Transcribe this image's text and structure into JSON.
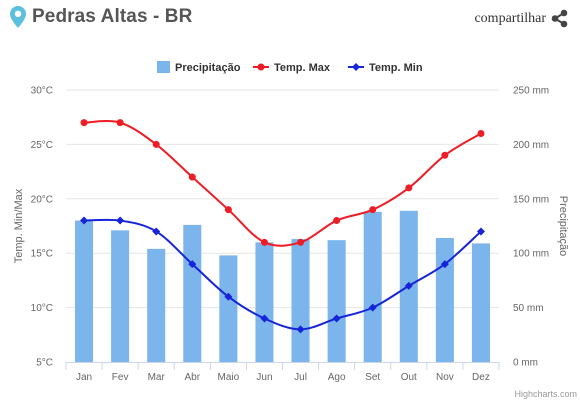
{
  "header": {
    "title": "Pedras Altas - BR",
    "share_label": "compartilhar",
    "pin_icon": "location-pin-icon",
    "share_icon": "share-icon",
    "accent": "#5bc0de"
  },
  "credits": "Highcharts.com",
  "chart_data": {
    "type": "bar",
    "categories": [
      "Jan",
      "Fev",
      "Mar",
      "Abr",
      "Maio",
      "Jun",
      "Jul",
      "Ago",
      "Set",
      "Out",
      "Nov",
      "Dez"
    ],
    "series": [
      {
        "name": "Precipitação",
        "kind": "bar",
        "axis": "right",
        "color": "#7cb5ec",
        "values": [
          130,
          121,
          104,
          126,
          98,
          110,
          113,
          112,
          138,
          139,
          114,
          109
        ]
      },
      {
        "name": "Temp. Max",
        "kind": "line",
        "axis": "left",
        "color": "#ee1c25",
        "values": [
          27,
          27,
          25,
          22,
          19,
          16,
          16,
          18,
          19,
          21,
          24,
          26
        ]
      },
      {
        "name": "Temp. Min",
        "kind": "line",
        "axis": "left",
        "color": "#1625d9",
        "values": [
          18,
          18,
          17,
          14,
          11,
          9,
          8,
          9,
          10,
          12,
          14,
          17
        ]
      }
    ],
    "left_axis": {
      "title": "Temp. Min/Max",
      "range": [
        5,
        30
      ],
      "ticks": [
        5,
        10,
        15,
        20,
        25,
        30
      ],
      "unit": "°C"
    },
    "right_axis": {
      "title": "Precipitação",
      "range": [
        0,
        250
      ],
      "ticks": [
        0,
        50,
        100,
        150,
        200,
        250
      ],
      "unit": " mm"
    },
    "grid": true,
    "legend": "top-center"
  }
}
